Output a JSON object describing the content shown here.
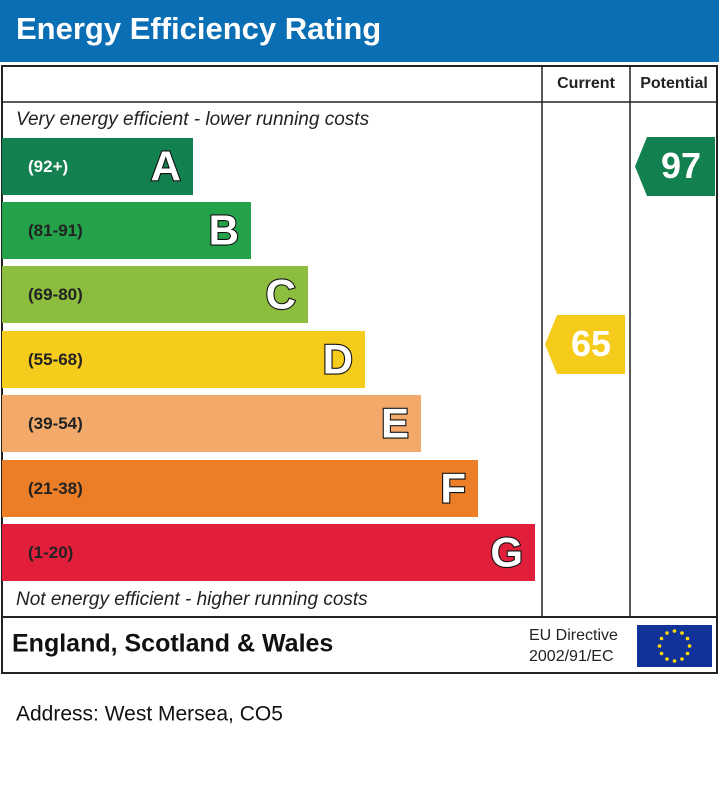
{
  "header": {
    "title": "Energy Efficiency Rating"
  },
  "columns": {
    "current": "Current",
    "potential": "Potential"
  },
  "top_note": "Very energy efficient - lower running costs",
  "bands": [
    {
      "range": "(92+)",
      "letter": "A",
      "color": "#12804f"
    },
    {
      "range": "(81-91)",
      "letter": "B",
      "color": "#23a24a"
    },
    {
      "range": "(69-80)",
      "letter": "C",
      "color": "#8dbd3e"
    },
    {
      "range": "(55-68)",
      "letter": "D",
      "color": "#f5cb1c"
    },
    {
      "range": "(39-54)",
      "letter": "E",
      "color": "#f2a96a"
    },
    {
      "range": "(21-38)",
      "letter": "F",
      "color": "#ec7e27"
    },
    {
      "range": "(1-20)",
      "letter": "G",
      "color": "#e21f3b"
    }
  ],
  "bottom_note": "Not energy efficient - higher running costs",
  "current": {
    "value": 65,
    "color": "#f5cb1c"
  },
  "potential": {
    "value": 97,
    "color": "#12804f"
  },
  "footer": {
    "region": "England, Scotland & Wales",
    "directive": [
      "EU Directive",
      "2002/91/EC"
    ]
  },
  "address": "Address: West Mersea, CO5"
}
